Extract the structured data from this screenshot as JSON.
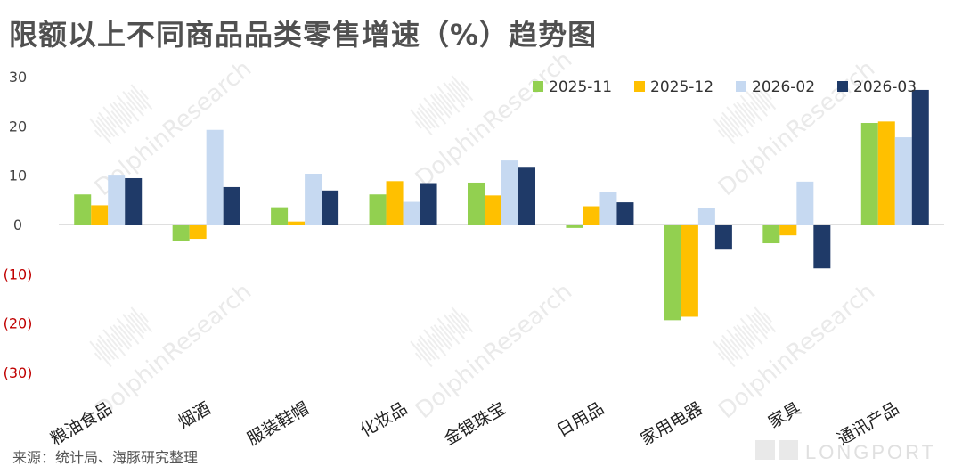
{
  "title": "限额以上不同商品品类零售增速（%）趋势图",
  "source": "来源：统计局、海豚研究整理",
  "watermark": "DolphinResearch",
  "brand": "LONGPORT",
  "chart_data": {
    "type": "bar",
    "title": "限额以上不同商品品类零售增速（%）趋势图",
    "xlabel": "",
    "ylabel": "",
    "ylim": [
      -30,
      30
    ],
    "yticks": [
      30,
      20,
      10,
      0,
      -10,
      -20,
      -30
    ],
    "ytick_labels": [
      "30",
      "20",
      "10",
      "0",
      "(10)",
      "(20)",
      "(30)"
    ],
    "negative_tick_color": "#c00000",
    "grid": false,
    "legend_position": "top-right",
    "categories": [
      "粮油食品",
      "烟酒",
      "服装鞋帽",
      "化妆品",
      "金银珠宝",
      "日用品",
      "家用电器",
      "家具",
      "通讯产品"
    ],
    "series": [
      {
        "name": "2025-11",
        "color": "#92d050",
        "values": [
          6.1,
          -3.4,
          3.5,
          6.1,
          8.5,
          -0.7,
          -19.4,
          -3.8,
          20.6
        ]
      },
      {
        "name": "2025-12",
        "color": "#ffc000",
        "values": [
          3.9,
          -2.9,
          0.6,
          8.8,
          5.9,
          3.7,
          -18.7,
          -2.2,
          20.9
        ]
      },
      {
        "name": "2026-02",
        "color": "#c6d9f1",
        "values": [
          10.1,
          19.2,
          10.3,
          4.6,
          13.0,
          6.6,
          3.3,
          8.7,
          17.7
        ]
      },
      {
        "name": "2026-03",
        "color": "#1f3a68",
        "values": [
          9.4,
          7.6,
          6.9,
          8.4,
          11.7,
          4.5,
          -5.1,
          -8.9,
          27.3
        ]
      }
    ]
  }
}
